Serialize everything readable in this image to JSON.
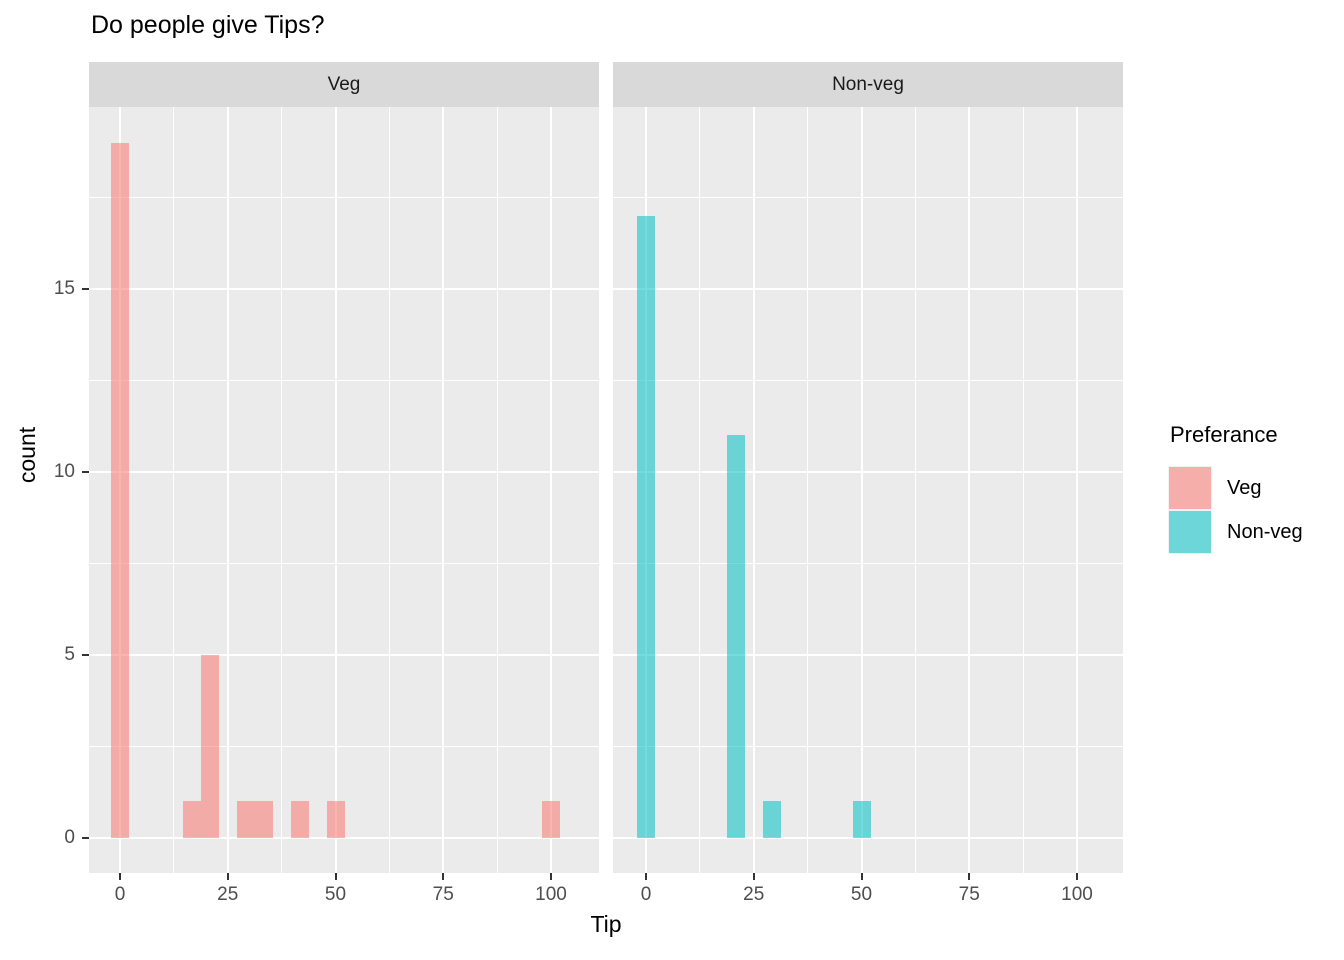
{
  "title": "Do people give Tips?",
  "axes": {
    "x_title": "Tip",
    "y_title": "count",
    "x_tick_labels": [
      "0",
      "25",
      "50",
      "75",
      "100"
    ],
    "y_tick_labels": [
      "0",
      "5",
      "10",
      "15"
    ]
  },
  "legend": {
    "title": "Preferance",
    "items": [
      {
        "label": "Veg",
        "color_hex": "#F8766D",
        "fill": "rgba(248,118,109,0.55)"
      },
      {
        "label": "Non-veg",
        "color_hex": "#00BFC4",
        "fill": "rgba(0,191,196,0.55)"
      }
    ]
  },
  "chart_data": {
    "type": "bar",
    "subtype": "faceted-histogram",
    "title": "Do people give Tips?",
    "xlabel": "Tip",
    "ylabel": "count",
    "x_ticks": [
      0,
      25,
      50,
      75,
      100
    ],
    "y_ticks": [
      0,
      5,
      10,
      15
    ],
    "x_minor_ticks": [
      12.5,
      37.5,
      62.5,
      87.5
    ],
    "y_minor_ticks": [
      2.5,
      7.5,
      12.5,
      17.5
    ],
    "xlim": [
      -7.5,
      110.5
    ],
    "ylim": [
      -1,
      20
    ],
    "binwidth": 4.17,
    "grid": true,
    "legend_position": "right",
    "facets": [
      {
        "label": "Veg",
        "series": "Veg",
        "bars": [
          {
            "x": 0,
            "count": 19
          },
          {
            "x": 16.7,
            "count": 1
          },
          {
            "x": 20.8,
            "count": 5
          },
          {
            "x": 29.2,
            "count": 1
          },
          {
            "x": 33.3,
            "count": 1
          },
          {
            "x": 41.7,
            "count": 1
          },
          {
            "x": 50,
            "count": 1
          },
          {
            "x": 100,
            "count": 1
          }
        ]
      },
      {
        "label": "Non-veg",
        "series": "Non-veg",
        "bars": [
          {
            "x": 0,
            "count": 17
          },
          {
            "x": 20.8,
            "count": 11
          },
          {
            "x": 29.2,
            "count": 1
          },
          {
            "x": 50,
            "count": 1
          }
        ]
      }
    ]
  },
  "colors": {
    "panel_bg": "#EBEBEB",
    "strip_bg": "#D9D9D9",
    "grid": "#FFFFFF",
    "tick_label": "#4D4D4D",
    "strip_text": "#1A1A1A",
    "title_text": "#000000",
    "tick_mark": "#333333"
  }
}
